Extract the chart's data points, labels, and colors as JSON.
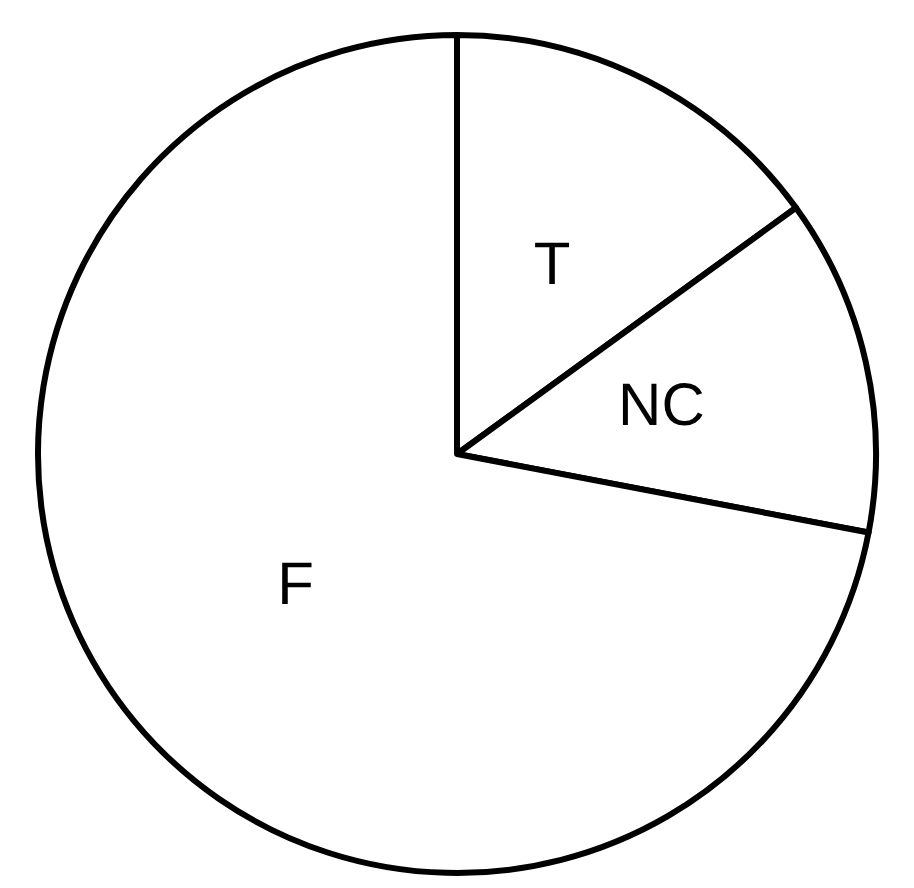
{
  "chart_data": {
    "type": "pie",
    "categories": [
      "T",
      "NC",
      "F"
    ],
    "values": [
      15,
      13,
      72
    ],
    "colors": [
      "#ffffff",
      "#ffffff",
      "#ffffff"
    ]
  }
}
